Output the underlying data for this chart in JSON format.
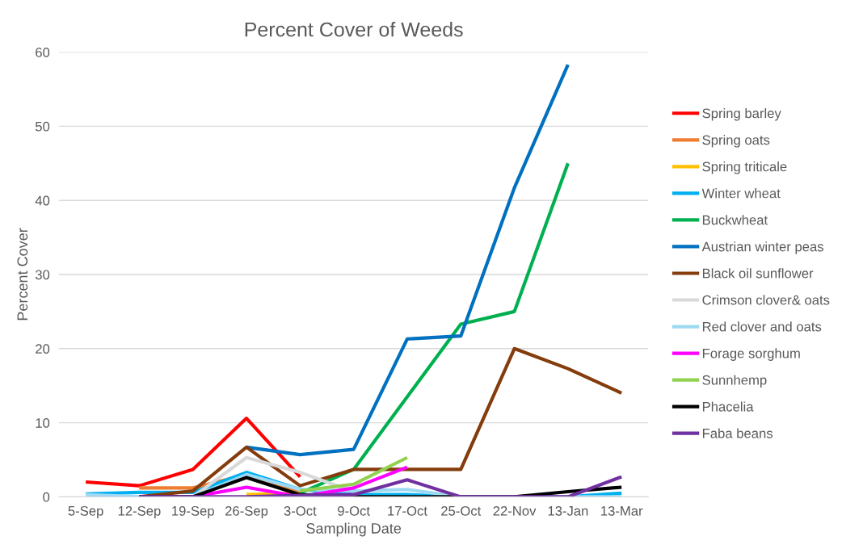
{
  "chart_data": {
    "type": "line",
    "title": "Percent Cover of Weeds",
    "xlabel": "Sampling Date",
    "ylabel": "Percent Cover",
    "categories": [
      "5-Sep",
      "12-Sep",
      "19-Sep",
      "26-Sep",
      "3-Oct",
      "9-Oct",
      "17-Oct",
      "25-Oct",
      "22-Nov",
      "13-Jan",
      "13-Mar"
    ],
    "ylim": [
      0,
      60
    ],
    "yticks": [
      0,
      10,
      20,
      30,
      40,
      50,
      60
    ],
    "grid": "y",
    "legend": "right",
    "marker": "none",
    "line_style": "solid",
    "series": [
      {
        "name": "Spring barley",
        "color": "#ff0000",
        "values": [
          2.0,
          1.5,
          3.7,
          10.6,
          2.7,
          null,
          null,
          null,
          null,
          null,
          null
        ]
      },
      {
        "name": "Spring oats",
        "color": "#ed7d31",
        "values": [
          null,
          1.2,
          1.2,
          3.0,
          0.5,
          null,
          null,
          null,
          null,
          null,
          null
        ]
      },
      {
        "name": "Spring triticale",
        "color": "#ffc000",
        "values": [
          null,
          null,
          null,
          0.3,
          0.5,
          null,
          null,
          null,
          null,
          null,
          null
        ]
      },
      {
        "name": "Winter wheat",
        "color": "#00b0f0",
        "values": [
          0.4,
          0.6,
          0.6,
          3.3,
          1.0,
          0.3,
          0.3,
          0,
          0,
          0,
          0.5
        ]
      },
      {
        "name": "Buckwheat",
        "color": "#00b050",
        "values": [
          null,
          null,
          null,
          null,
          0.5,
          3.7,
          13.5,
          23.3,
          25,
          45,
          null
        ]
      },
      {
        "name": "Austrian winter peas",
        "color": "#0070c0",
        "values": [
          null,
          null,
          null,
          6.7,
          5.7,
          6.4,
          21.3,
          21.7,
          41.7,
          58.3,
          null
        ]
      },
      {
        "name": "Black oil sunflower",
        "color": "#843c0c",
        "values": [
          null,
          0,
          0.8,
          6.7,
          1.5,
          3.7,
          3.7,
          3.7,
          20,
          17.3,
          14
        ]
      },
      {
        "name": "Crimson clover& oats",
        "color": "#d9d9d9",
        "values": [
          null,
          null,
          0,
          5.3,
          3.3,
          0.7,
          null,
          null,
          null,
          null,
          null
        ]
      },
      {
        "name": "Red clover and oats",
        "color": "#9dd9f3",
        "values": [
          0.3,
          0,
          0,
          3.0,
          1.0,
          0.8,
          1.0,
          0,
          0,
          0,
          0
        ]
      },
      {
        "name": "Forage sorghum",
        "color": "#ff00ff",
        "values": [
          null,
          0,
          0,
          1.3,
          0,
          1.2,
          4.0,
          null,
          null,
          null,
          null
        ]
      },
      {
        "name": "Sunnhemp",
        "color": "#92d050",
        "values": [
          null,
          null,
          null,
          null,
          0.8,
          1.7,
          5.3,
          null,
          null,
          null,
          null
        ]
      },
      {
        "name": "Phacelia",
        "color": "#000000",
        "values": [
          null,
          0,
          0,
          2.6,
          0.3,
          0,
          0,
          0,
          0,
          0.7,
          1.3
        ]
      },
      {
        "name": "Faba beans",
        "color": "#7030a0",
        "values": [
          null,
          0,
          0,
          0,
          0.2,
          0.3,
          2.3,
          0,
          0,
          0,
          2.7
        ]
      }
    ]
  }
}
